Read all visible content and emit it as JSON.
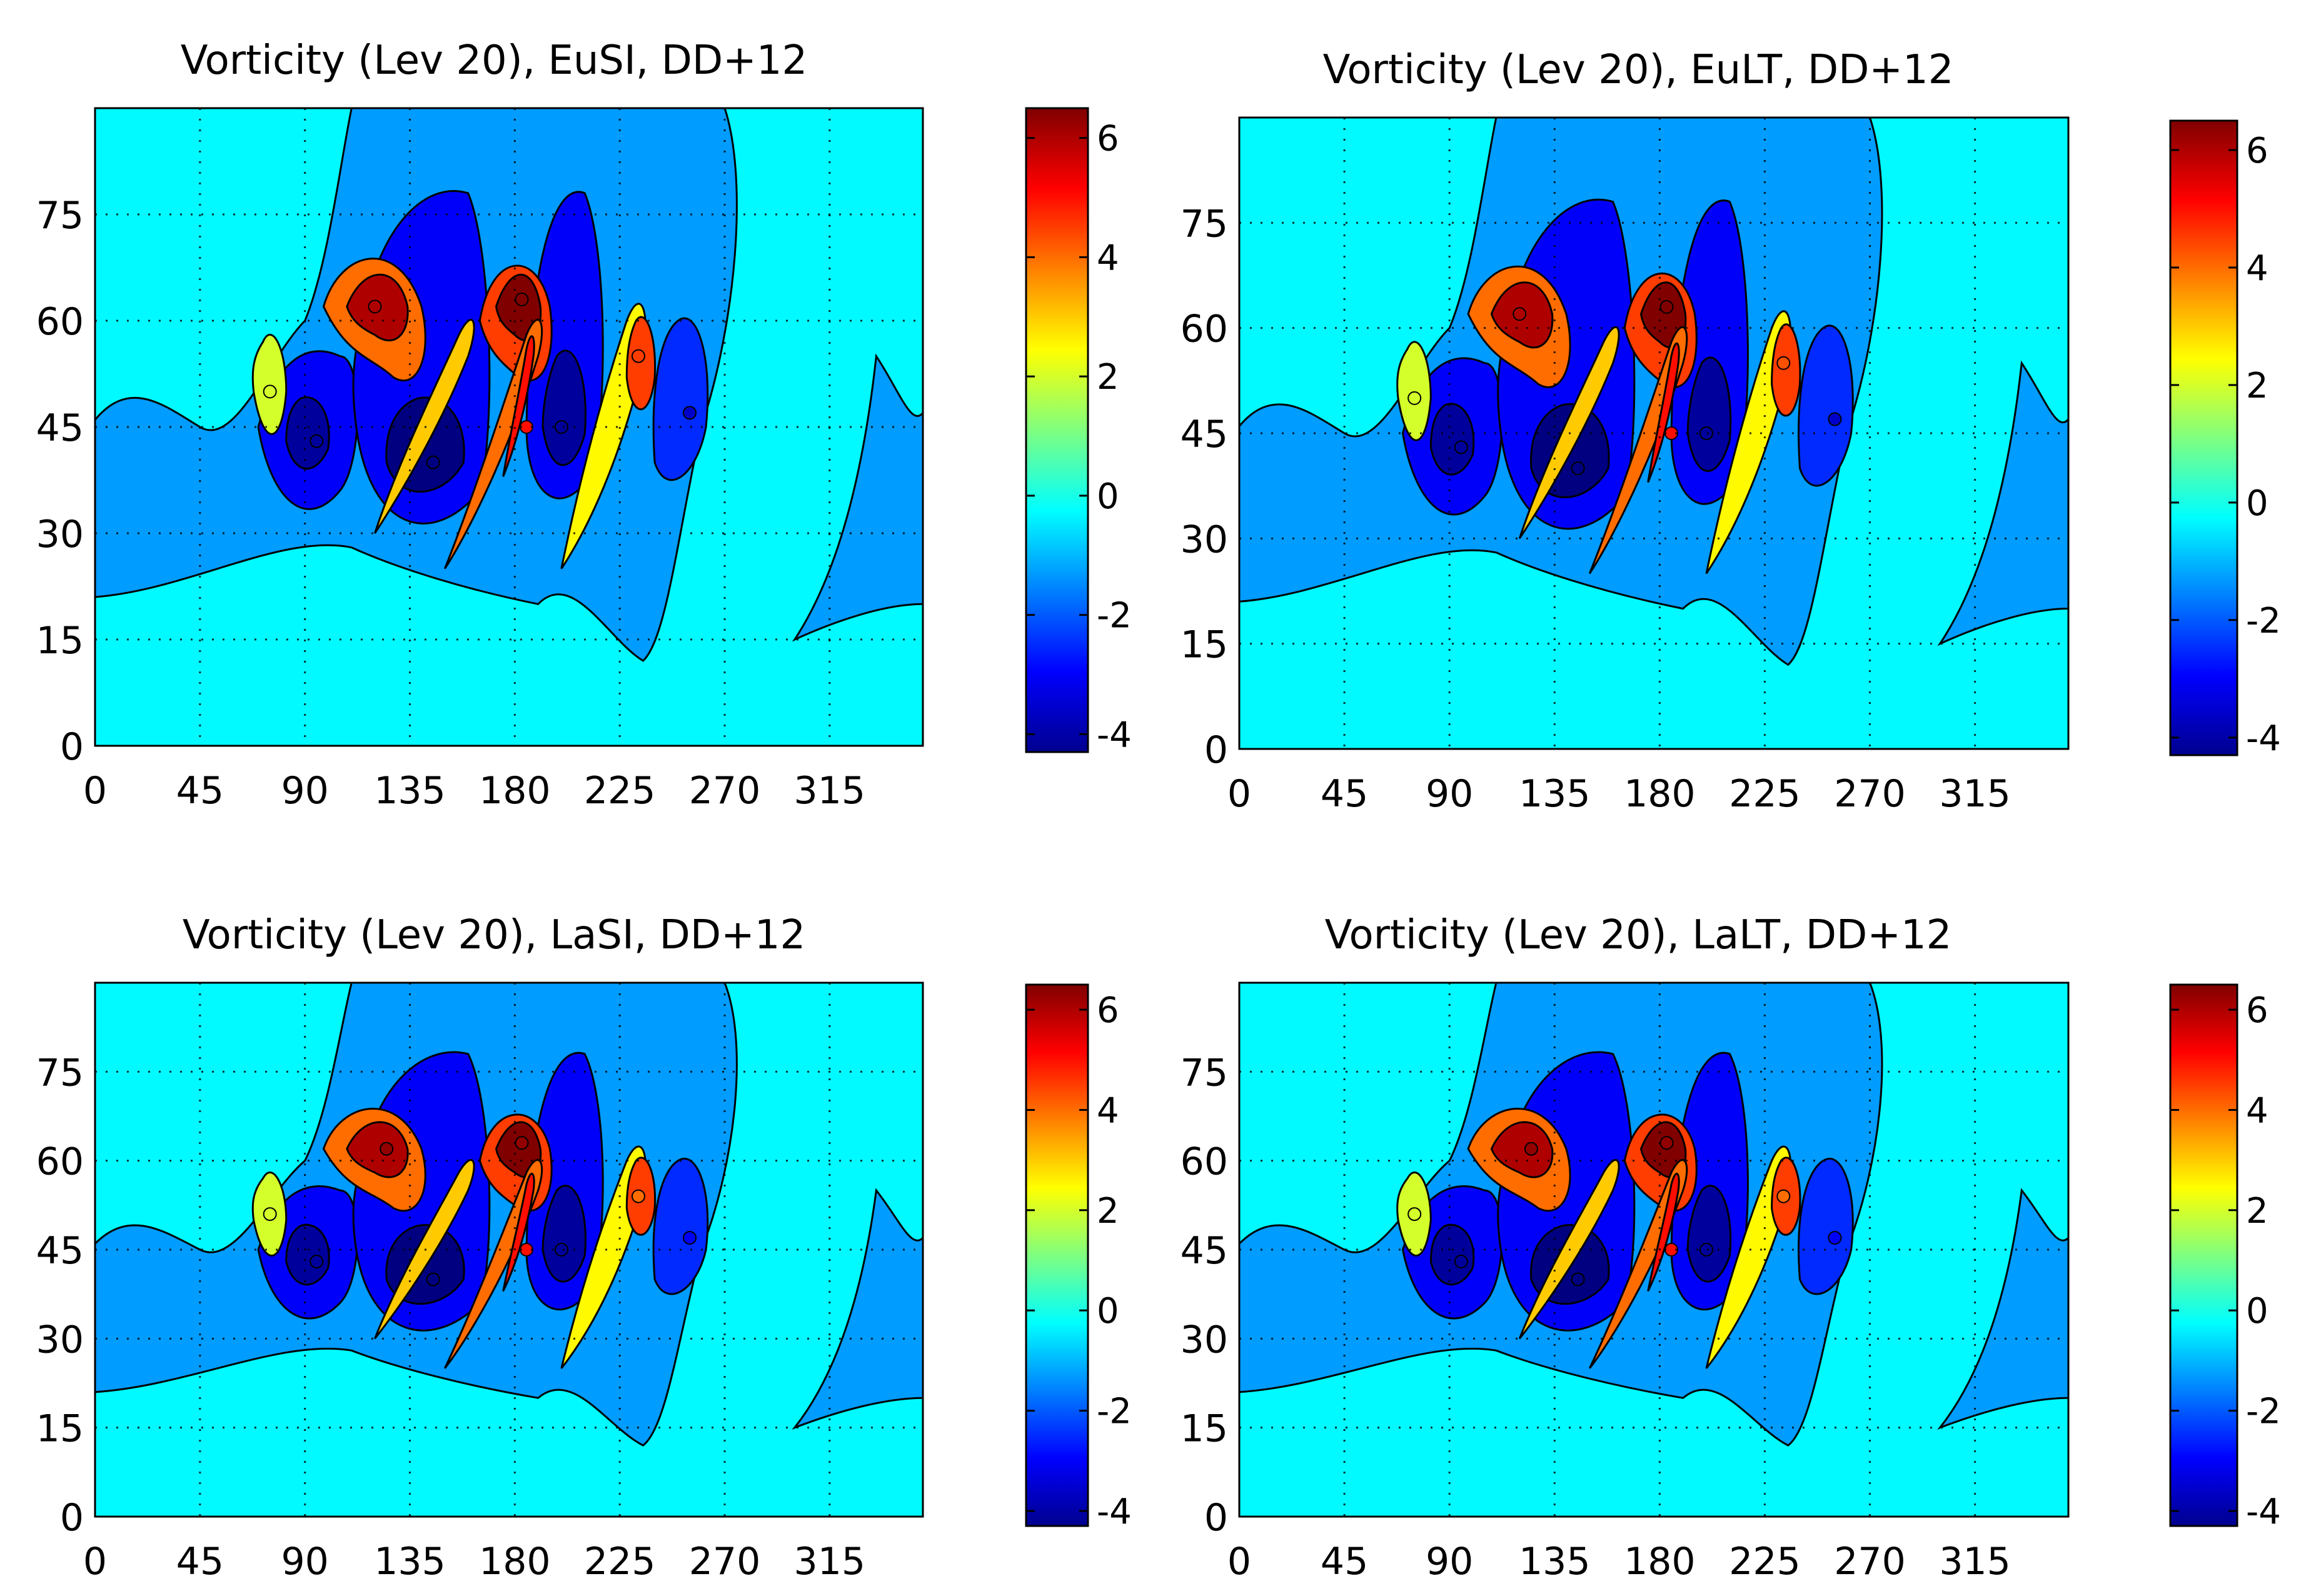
{
  "chart_data": [
    {
      "type": "contour",
      "title": "Vorticity (Lev 20), EuSI, DD+12",
      "xticks": [
        "0",
        "45",
        "90",
        "135",
        "180",
        "225",
        "270",
        "315"
      ],
      "yticks": [
        "0",
        "15",
        "30",
        "45",
        "60",
        "75"
      ],
      "xlim": [
        0,
        355
      ],
      "ylim": [
        0,
        90
      ],
      "colorbar": {
        "min": -4.3,
        "max": 6.5,
        "ticks": [
          "6",
          "4",
          "2",
          "0",
          "-2",
          "-4"
        ],
        "tick_values": [
          6,
          4,
          2,
          0,
          -2,
          -4
        ]
      },
      "features": [
        {
          "name": "main-positive-max",
          "lon": 183,
          "lat": 63,
          "value": 6.5
        },
        {
          "name": "west-positive-max",
          "lon": 120,
          "lat": 62,
          "value": 6.0
        },
        {
          "name": "positive-filament",
          "lon": 185,
          "lat": 45,
          "value": 5.0
        },
        {
          "name": "east-positive-max",
          "lon": 233,
          "lat": 55,
          "value": 4.5
        },
        {
          "name": "west-weak-positive",
          "lon": 75,
          "lat": 50,
          "value": 2.0
        },
        {
          "name": "main-negative-min",
          "lon": 145,
          "lat": 40,
          "value": -4.3
        },
        {
          "name": "west-negative-min",
          "lon": 95,
          "lat": 43,
          "value": -4.0
        },
        {
          "name": "east-negative-min",
          "lon": 200,
          "lat": 45,
          "value": -4.0
        },
        {
          "name": "far-east-negative",
          "lon": 255,
          "lat": 47,
          "value": -3.5
        }
      ]
    },
    {
      "type": "contour",
      "title": "Vorticity (Lev 20), EuLT, DD+12",
      "xticks": [
        "0",
        "45",
        "90",
        "135",
        "180",
        "225",
        "270",
        "315"
      ],
      "yticks": [
        "0",
        "15",
        "30",
        "45",
        "60",
        "75"
      ],
      "xlim": [
        0,
        355
      ],
      "ylim": [
        0,
        90
      ],
      "colorbar": {
        "min": -4.3,
        "max": 6.5,
        "ticks": [
          "6",
          "4",
          "2",
          "0",
          "-2",
          "-4"
        ],
        "tick_values": [
          6,
          4,
          2,
          0,
          -2,
          -4
        ]
      },
      "features": [
        {
          "name": "main-positive-max",
          "lon": 183,
          "lat": 63,
          "value": 6.5
        },
        {
          "name": "west-positive-max",
          "lon": 120,
          "lat": 62,
          "value": 6.0
        },
        {
          "name": "positive-filament",
          "lon": 185,
          "lat": 45,
          "value": 5.0
        },
        {
          "name": "east-positive-max",
          "lon": 233,
          "lat": 55,
          "value": 4.3
        },
        {
          "name": "west-weak-positive",
          "lon": 75,
          "lat": 50,
          "value": 2.0
        },
        {
          "name": "main-negative-min",
          "lon": 145,
          "lat": 40,
          "value": -4.3
        },
        {
          "name": "west-negative-min",
          "lon": 95,
          "lat": 43,
          "value": -4.0
        },
        {
          "name": "east-negative-min",
          "lon": 200,
          "lat": 45,
          "value": -4.0
        },
        {
          "name": "far-east-negative",
          "lon": 255,
          "lat": 47,
          "value": -3.5
        }
      ]
    },
    {
      "type": "contour",
      "title": "Vorticity (Lev 20), LaSI, DD+12",
      "xticks": [
        "0",
        "45",
        "90",
        "135",
        "180",
        "225",
        "270",
        "315"
      ],
      "yticks": [
        "0",
        "15",
        "30",
        "45",
        "60",
        "75"
      ],
      "xlim": [
        0,
        355
      ],
      "ylim": [
        0,
        90
      ],
      "colorbar": {
        "min": -4.3,
        "max": 6.5,
        "ticks": [
          "6",
          "4",
          "2",
          "0",
          "-2",
          "-4"
        ],
        "tick_values": [
          6,
          4,
          2,
          0,
          -2,
          -4
        ]
      },
      "features": [
        {
          "name": "main-positive-max",
          "lon": 183,
          "lat": 63,
          "value": 6.3
        },
        {
          "name": "west-positive-max",
          "lon": 125,
          "lat": 62,
          "value": 6.3
        },
        {
          "name": "positive-filament",
          "lon": 185,
          "lat": 45,
          "value": 5.0
        },
        {
          "name": "east-positive-max",
          "lon": 233,
          "lat": 54,
          "value": 4.0
        },
        {
          "name": "west-weak-positive",
          "lon": 75,
          "lat": 51,
          "value": 2.0
        },
        {
          "name": "main-negative-min",
          "lon": 145,
          "lat": 40,
          "value": -4.3
        },
        {
          "name": "west-negative-min",
          "lon": 95,
          "lat": 43,
          "value": -4.0
        },
        {
          "name": "east-negative-min",
          "lon": 200,
          "lat": 45,
          "value": -4.0
        },
        {
          "name": "far-east-negative",
          "lon": 255,
          "lat": 47,
          "value": -3.0
        }
      ]
    },
    {
      "type": "contour",
      "title": "Vorticity (Lev 20), LaLT, DD+12",
      "xticks": [
        "0",
        "45",
        "90",
        "135",
        "180",
        "225",
        "270",
        "315"
      ],
      "yticks": [
        "0",
        "15",
        "30",
        "45",
        "60",
        "75"
      ],
      "xlim": [
        0,
        355
      ],
      "ylim": [
        0,
        90
      ],
      "colorbar": {
        "min": -4.3,
        "max": 6.5,
        "ticks": [
          "6",
          "4",
          "2",
          "0",
          "-2",
          "-4"
        ],
        "tick_values": [
          6,
          4,
          2,
          0,
          -2,
          -4
        ]
      },
      "features": [
        {
          "name": "main-positive-max",
          "lon": 183,
          "lat": 63,
          "value": 6.3
        },
        {
          "name": "west-positive-max",
          "lon": 125,
          "lat": 62,
          "value": 6.3
        },
        {
          "name": "positive-filament",
          "lon": 185,
          "lat": 45,
          "value": 5.0
        },
        {
          "name": "east-positive-max",
          "lon": 233,
          "lat": 54,
          "value": 4.0
        },
        {
          "name": "west-weak-positive",
          "lon": 75,
          "lat": 51,
          "value": 2.0
        },
        {
          "name": "main-negative-min",
          "lon": 145,
          "lat": 40,
          "value": -4.3
        },
        {
          "name": "west-negative-min",
          "lon": 95,
          "lat": 43,
          "value": -4.0
        },
        {
          "name": "east-negative-min",
          "lon": 200,
          "lat": 45,
          "value": -4.0
        },
        {
          "name": "far-east-negative",
          "lon": 255,
          "lat": 47,
          "value": -3.0
        }
      ]
    }
  ]
}
